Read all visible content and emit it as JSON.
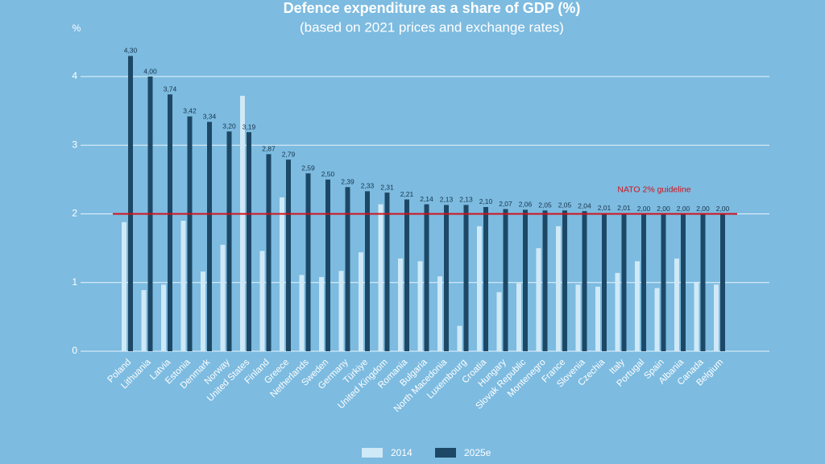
{
  "chart_data": {
    "type": "bar",
    "title": "Defence expenditure as a share of GDP (%)",
    "subtitle": "(based on 2021 prices and exchange rates)",
    "y_label": "%",
    "categories": [
      "Poland",
      "Lithuania",
      "Latvia",
      "Estonia",
      "Denmark",
      "Norway",
      "United States",
      "Finland",
      "Greece",
      "Netherlands",
      "Sweden",
      "Germany",
      "Türkiye",
      "United Kingdom",
      "Romania",
      "Bulgaria",
      "North Macedonia",
      "Luxembourg",
      "Croatia",
      "Hungary",
      "Slovak Republic",
      "Montenegro",
      "France",
      "Slovenia",
      "Czechia",
      "Italy",
      "Portugal",
      "Spain",
      "Albania",
      "Canada",
      "Belgium"
    ],
    "series": [
      {
        "name": "2014",
        "color": "#cfe9f7",
        "values": [
          1.88,
          0.89,
          0.97,
          1.9,
          1.16,
          1.55,
          3.72,
          1.46,
          2.24,
          1.11,
          1.08,
          1.17,
          1.44,
          2.14,
          1.35,
          1.31,
          1.09,
          0.37,
          1.82,
          0.86,
          0.99,
          1.5,
          1.82,
          0.97,
          0.94,
          1.14,
          1.31,
          0.92,
          1.35,
          1.01,
          0.97
        ]
      },
      {
        "name": "2025e",
        "color": "#1c4866",
        "values": [
          4.3,
          4.0,
          3.74,
          3.42,
          3.34,
          3.2,
          3.19,
          2.87,
          2.79,
          2.59,
          2.5,
          2.39,
          2.33,
          2.31,
          2.21,
          2.14,
          2.13,
          2.13,
          2.1,
          2.07,
          2.06,
          2.05,
          2.05,
          2.04,
          2.01,
          2.01,
          2.0,
          2.0,
          2.0,
          2.0,
          2.0
        ],
        "value_labels": [
          "4,30",
          "4,00",
          "3,74",
          "3,42",
          "3,34",
          "3,20",
          "3,19",
          "2,87",
          "2,79",
          "2,59",
          "2,50",
          "2,39",
          "2,33",
          "2,31",
          "2,21",
          "2,14",
          "2,13",
          "2,13",
          "2,10",
          "2,07",
          "2,06",
          "2,05",
          "2,05",
          "2,04",
          "2,01",
          "2,01",
          "2,00",
          "2,00",
          "2,00",
          "2,00",
          "2,00"
        ]
      }
    ],
    "ylim": [
      0,
      4.5
    ],
    "yticks": [
      0,
      1,
      2,
      3,
      4
    ],
    "grid": true,
    "reference_line": {
      "value": 2,
      "label": "NATO 2% guideline",
      "color": "#d0121b"
    },
    "legend": "bottom"
  }
}
